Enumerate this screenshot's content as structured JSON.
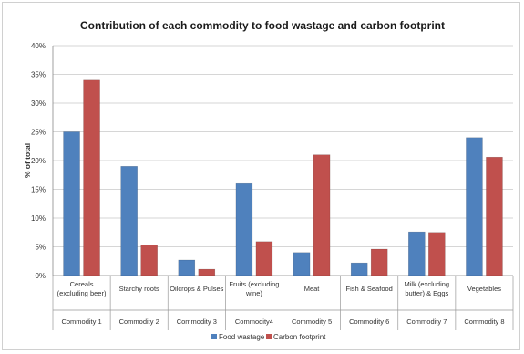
{
  "chart_data": {
    "type": "bar",
    "title": "Contribution of each commodity to food wastage and carbon footprint",
    "ylabel": "% of total",
    "xlabel": "",
    "ylim": [
      0,
      40
    ],
    "yticks": [
      "0%",
      "5%",
      "10%",
      "15%",
      "20%",
      "25%",
      "30%",
      "35%",
      "40%"
    ],
    "categories": [
      "Cereals (excluding beer)",
      "Starchy roots",
      "Oilcrops & Pulses",
      "Fruits (excluding wine)",
      "Meat",
      "Fish & Seafood",
      "Milk (excluding butter) & Eggs",
      "Vegetables"
    ],
    "category_lines": [
      [
        "Cereals",
        "(excluding beer)"
      ],
      [
        "Starchy roots"
      ],
      [
        "Oilcrops & Pulses"
      ],
      [
        "Fruits (excluding",
        "wine)"
      ],
      [
        "Meat"
      ],
      [
        "Fish & Seafood"
      ],
      [
        "Milk (excluding",
        "butter) & Eggs"
      ],
      [
        "Vegetables"
      ]
    ],
    "groups": [
      "Commodity 1",
      "Commodity 2",
      "Commodity 3",
      "Commodity4",
      "Commodity 5",
      "Commodity 6",
      "Commodity 7",
      "Commodity 8"
    ],
    "series": [
      {
        "name": "Food wastage",
        "color": "#4f81bd",
        "values": [
          25,
          19,
          2.7,
          16,
          4,
          2.2,
          7.6,
          24
        ]
      },
      {
        "name": "Carbon footprint",
        "color": "#c0504d",
        "values": [
          34,
          5.3,
          1.1,
          5.9,
          21,
          4.6,
          7.5,
          20.6
        ]
      }
    ],
    "grid": true,
    "legend_position": "bottom"
  }
}
